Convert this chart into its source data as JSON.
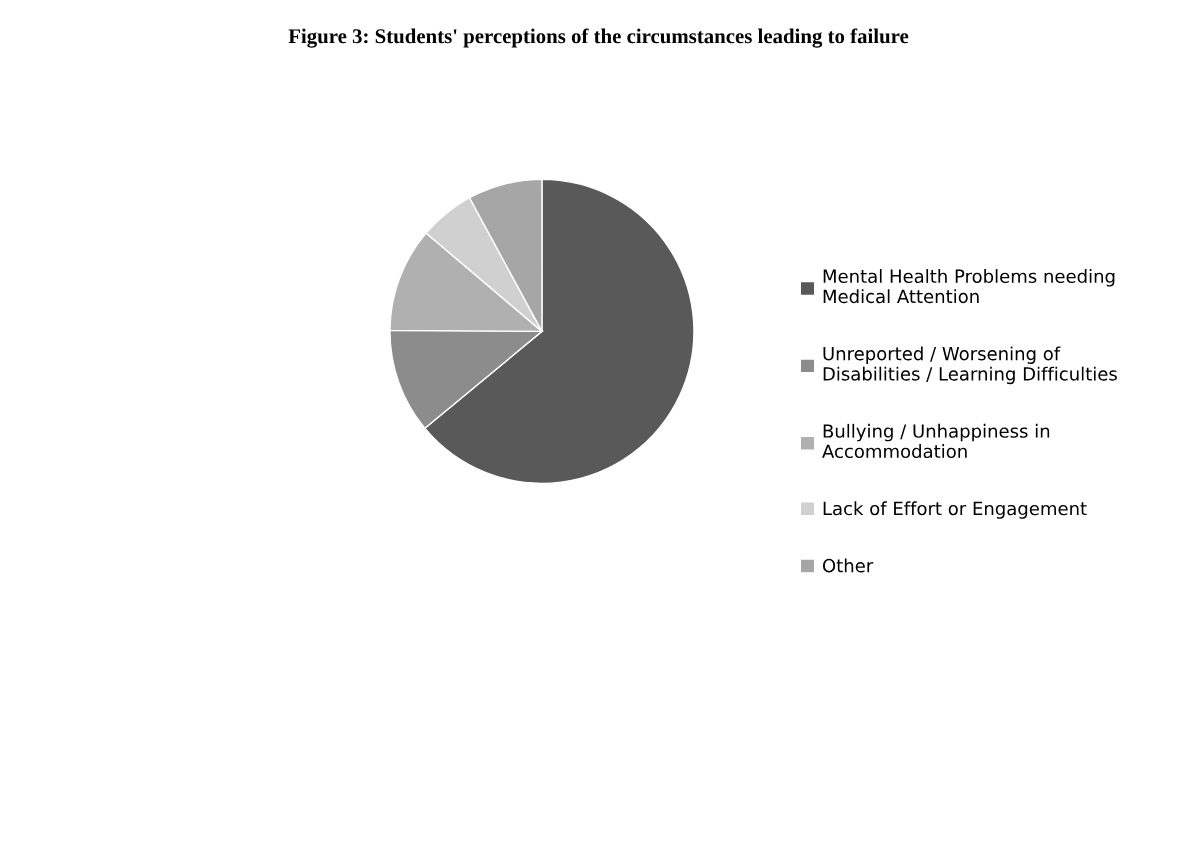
{
  "chart_data": {
    "type": "pie",
    "title": "Figure 3: Students' perceptions of the circumstances leading to failure",
    "categories": [
      "Mental Health Problems needing Medical Attention",
      "Unreported / Worsening of Disabilities / Learning Difficulties",
      "Bullying / Unhappiness in Accommodation",
      "Lack of Effort or Engagement",
      "Other"
    ],
    "values": [
      64.0,
      11.1,
      11.1,
      5.9,
      7.9
    ],
    "colors": [
      "#595959",
      "#8c8c8c",
      "#b0b0b0",
      "#d0d0d0",
      "#a6a6a6"
    ],
    "legend": "right"
  }
}
